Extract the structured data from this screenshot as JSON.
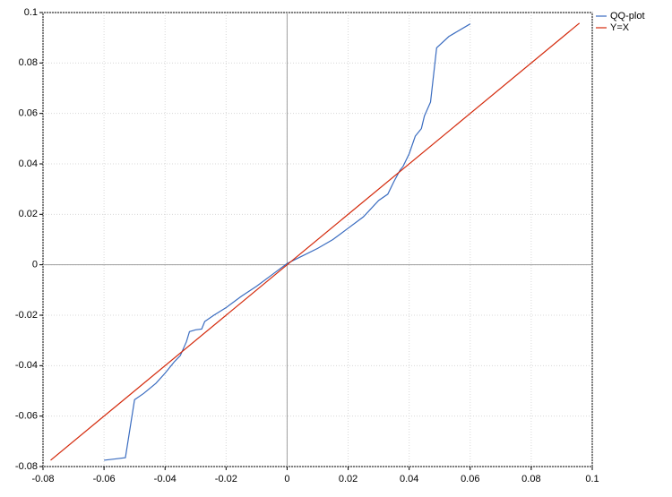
{
  "chart_data": {
    "type": "line",
    "series": [
      {
        "name": "QQ-plot",
        "color": "#3a6cc0",
        "x": [
          -0.06,
          -0.053,
          -0.05,
          -0.047,
          -0.043,
          -0.04,
          -0.037,
          -0.035,
          -0.033,
          -0.032,
          -0.03,
          -0.028,
          -0.027,
          -0.024,
          -0.02,
          -0.015,
          -0.01,
          -0.005,
          0,
          0.005,
          0.01,
          0.015,
          0.02,
          0.025,
          0.03,
          0.033,
          0.035,
          0.037,
          0.038,
          0.04,
          0.042,
          0.044,
          0.045,
          0.047,
          0.049,
          0.053,
          0.06
        ],
        "values": [
          -0.0775,
          -0.0765,
          -0.0535,
          -0.051,
          -0.047,
          -0.043,
          -0.0385,
          -0.036,
          -0.0305,
          -0.0265,
          -0.0258,
          -0.0255,
          -0.0225,
          -0.02,
          -0.017,
          -0.0125,
          -0.0085,
          -0.004,
          0.0005,
          0.0035,
          0.0065,
          0.01,
          0.0145,
          0.019,
          0.0255,
          0.028,
          0.033,
          0.0375,
          0.039,
          0.044,
          0.051,
          0.054,
          0.059,
          0.0645,
          0.086,
          0.0905,
          0.0955
        ]
      },
      {
        "name": "Y=X",
        "color": "#d42a0c",
        "x": [
          -0.0775,
          0.0958
        ],
        "values": [
          -0.0775,
          0.0958
        ]
      }
    ],
    "xlim": [
      -0.08,
      0.1
    ],
    "ylim": [
      -0.08,
      0.1
    ],
    "xticks": [
      -0.08,
      -0.06,
      -0.04,
      -0.02,
      0,
      0.02,
      0.04,
      0.06,
      0.08,
      0.1
    ],
    "yticks": [
      -0.08,
      -0.06,
      -0.04,
      -0.02,
      0,
      0.02,
      0.04,
      0.06,
      0.08,
      0.1
    ],
    "grid": true,
    "legend": "top-right"
  }
}
